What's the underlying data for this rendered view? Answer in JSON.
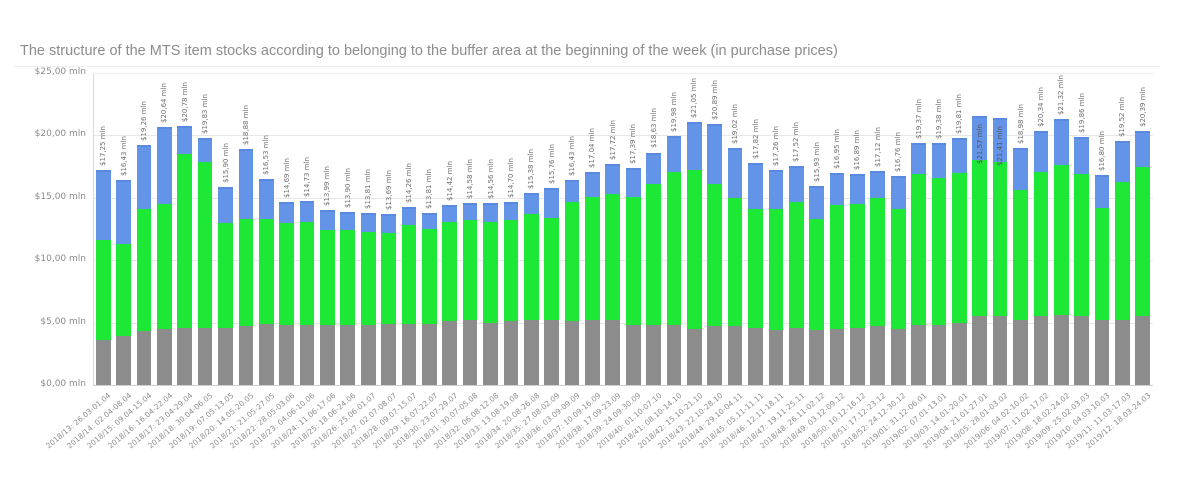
{
  "header": {
    "title": "The structure of the MTS item stocks according to belonging to the buffer area at the beginning of the week (in purchase prices)"
  },
  "colors": {
    "gray": "#8b8c8b",
    "green": "#1ee836",
    "blue": "#6494e8",
    "title": "#8c8c8c",
    "grid": "#e6e6e6"
  },
  "chart_data": {
    "type": "bar",
    "stacked": true,
    "title": "The structure of the MTS item stocks according to belonging to the buffer area at the beginning of the week (in purchase prices)",
    "xlabel": "",
    "ylabel": "",
    "ylim": [
      0,
      25
    ],
    "yticks": [
      "$0,00 mln",
      "$5,00 mln",
      "$10,00 mln",
      "$15,00 mln",
      "$20,00 mln",
      "$25,00 mln"
    ],
    "ytick_values": [
      0,
      5,
      10,
      15,
      20,
      25
    ],
    "grid": true,
    "legend": null,
    "categories": [
      "2018/13: 26.03-01.04",
      "2018/14: 02.04-08.04",
      "2018/15: 09.04-15.04",
      "2018/16: 16.04-22.04",
      "2018/17: 23.04-29.04",
      "2018/18: 30.04-06.05",
      "2018/19: 07.05-13.05",
      "2018/20: 14.05-20.05",
      "2018/21: 21.05-27.05",
      "2018/22: 28.05-03.06",
      "2018/23: 04.06-10.06",
      "2018/24: 11.06-17.06",
      "2018/25: 18.06-24.06",
      "2018/26: 25.06-01.07",
      "2018/27: 02.07-08.07",
      "2018/28: 09.07-15.07",
      "2018/29: 16.07-22.07",
      "2018/30: 23.07-29.07",
      "2018/31: 30.07-05.08",
      "2018/32: 06.08-12.08",
      "2018/33: 13.08-19.08",
      "2018/34: 20.08-26.08",
      "2018/35: 27.08-02.09",
      "2018/36: 03.09-09.09",
      "2018/37: 10.09-16.09",
      "2018/38: 17.09-23.09",
      "2018/39: 24.09-30.09",
      "2018/40: 01.10-07.10",
      "2018/41: 08.10-14.10",
      "2018/42: 15.10-21.10",
      "2018/43: 22.10-28.10",
      "2018/44: 29.10-04.11",
      "2018/45: 05.11-11.11",
      "2018/46: 12.11-18.11",
      "2018/47: 19.11-25.11",
      "2018/48: 26.11-02.12",
      "2018/49: 03.12-09.12",
      "2018/50: 10.12-16.12",
      "2018/51: 17.12-23.12",
      "2018/52: 24.12-30.12",
      "2019/01: 31.12-06.01",
      "2019/02: 07.01-13.01",
      "2019/03: 14.01-20.01",
      "2019/04: 21.01-27.01",
      "2019/05: 28.01-03.02",
      "2019/06: 04.02-10.02",
      "2019/07: 11.02-17.02",
      "2019/08: 18.02-24.02",
      "2019/09: 25.02-03.03",
      "2019/10: 04.03-10.03",
      "2019/11: 11.03-17.03",
      "2019/12: 18.03-24.03"
    ],
    "totals": [
      17.25,
      16.43,
      19.26,
      20.64,
      20.78,
      19.83,
      15.9,
      18.88,
      16.53,
      14.69,
      14.73,
      13.99,
      13.9,
      13.81,
      13.69,
      14.26,
      13.81,
      14.42,
      14.58,
      14.56,
      14.7,
      15.38,
      15.76,
      16.43,
      17.04,
      17.72,
      17.39,
      18.63,
      19.98,
      21.05,
      20.89,
      19.02,
      17.82,
      17.26,
      17.52,
      15.93,
      16.95,
      16.89,
      17.12,
      16.76,
      19.37,
      19.38,
      19.81,
      21.57,
      21.41,
      18.98,
      20.34,
      21.32,
      19.86,
      16.8,
      19.52,
      20.39
    ],
    "total_labels": [
      "$17,25 mln",
      "$16,43 mln",
      "$19,26 mln",
      "$20,64 mln",
      "$20,78 mln",
      "$19,83 mln",
      "$15,90 mln",
      "$18,88 mln",
      "$16,53 mln",
      "$14,69 mln",
      "$14,73 mln",
      "$13,99 mln",
      "$13,90 mln",
      "$13,81 mln",
      "$13,69 mln",
      "$14,26 mln",
      "$13,81 mln",
      "$14,42 mln",
      "$14,58 mln",
      "$14,56 mln",
      "$14,70 mln",
      "$15,38 mln",
      "$15,76 mln",
      "$16,43 mln",
      "$17,04 mln",
      "$17,72 mln",
      "$17,39 mln",
      "$18,63 mln",
      "$19,98 mln",
      "$21,05 mln",
      "$20,89 mln",
      "$19,02 mln",
      "$17,82 mln",
      "$17,26 mln",
      "$17,52 mln",
      "$15,93 mln",
      "$16,95 mln",
      "$16,89 mln",
      "$17,12 mln",
      "$16,76 mln",
      "$19,37 mln",
      "$19,38 mln",
      "$19,81 mln",
      "$21,57 mln",
      "$21,41 mln",
      "$18,98 mln",
      "$20,34 mln",
      "$21,32 mln",
      "$19,86 mln",
      "$16,80 mln",
      "$19,52 mln",
      "$20,39 mln"
    ],
    "label_inside": [
      false,
      false,
      false,
      false,
      false,
      false,
      false,
      false,
      false,
      false,
      false,
      false,
      false,
      false,
      false,
      false,
      false,
      false,
      false,
      false,
      false,
      false,
      false,
      false,
      false,
      false,
      false,
      false,
      false,
      false,
      false,
      false,
      false,
      false,
      false,
      false,
      false,
      false,
      false,
      false,
      false,
      false,
      false,
      true,
      true,
      false,
      false,
      false,
      false,
      false,
      false,
      false
    ],
    "series": [
      {
        "name": "gray",
        "color": "#8b8c8b",
        "values": [
          3.6,
          3.9,
          4.3,
          4.5,
          4.6,
          4.6,
          4.6,
          4.7,
          4.9,
          4.8,
          4.8,
          4.8,
          4.8,
          4.8,
          4.9,
          4.9,
          4.9,
          5.1,
          5.2,
          5.0,
          5.1,
          5.2,
          5.2,
          5.1,
          5.2,
          5.2,
          4.8,
          4.8,
          4.8,
          4.5,
          4.7,
          4.7,
          4.6,
          4.4,
          4.6,
          4.4,
          4.5,
          4.6,
          4.7,
          4.5,
          4.8,
          4.8,
          5.0,
          5.5,
          5.5,
          5.2,
          5.5,
          5.6,
          5.5,
          5.2,
          5.2,
          5.5
        ]
      },
      {
        "name": "green",
        "color": "#1ee836",
        "values": [
          8.0,
          7.4,
          9.8,
          10.0,
          13.9,
          13.3,
          8.4,
          8.6,
          8.4,
          8.2,
          8.3,
          7.6,
          7.6,
          7.5,
          7.3,
          7.9,
          7.6,
          8.0,
          8.0,
          8.1,
          8.1,
          8.5,
          8.2,
          9.6,
          9.9,
          10.1,
          10.3,
          11.3,
          12.3,
          12.7,
          11.4,
          10.3,
          9.5,
          9.7,
          10.1,
          8.9,
          9.9,
          9.9,
          10.3,
          9.6,
          12.1,
          11.8,
          12.0,
          12.5,
          12.4,
          10.4,
          11.6,
          12.0,
          11.4,
          9.0,
          11.1,
          12.0
        ]
      },
      {
        "name": "blue",
        "color": "#6494e8",
        "values": [
          5.65,
          5.13,
          5.16,
          6.14,
          2.28,
          1.93,
          2.9,
          5.58,
          3.23,
          1.69,
          1.63,
          1.59,
          1.5,
          1.51,
          1.49,
          1.46,
          1.31,
          1.32,
          1.38,
          1.46,
          1.5,
          1.68,
          2.36,
          1.73,
          1.94,
          2.42,
          2.29,
          2.53,
          2.88,
          3.85,
          4.79,
          4.02,
          3.72,
          3.16,
          2.82,
          2.63,
          2.55,
          2.39,
          2.12,
          2.66,
          2.47,
          2.78,
          2.81,
          3.57,
          3.51,
          3.38,
          3.24,
          3.72,
          2.96,
          2.6,
          3.22,
          2.89
        ]
      }
    ]
  }
}
